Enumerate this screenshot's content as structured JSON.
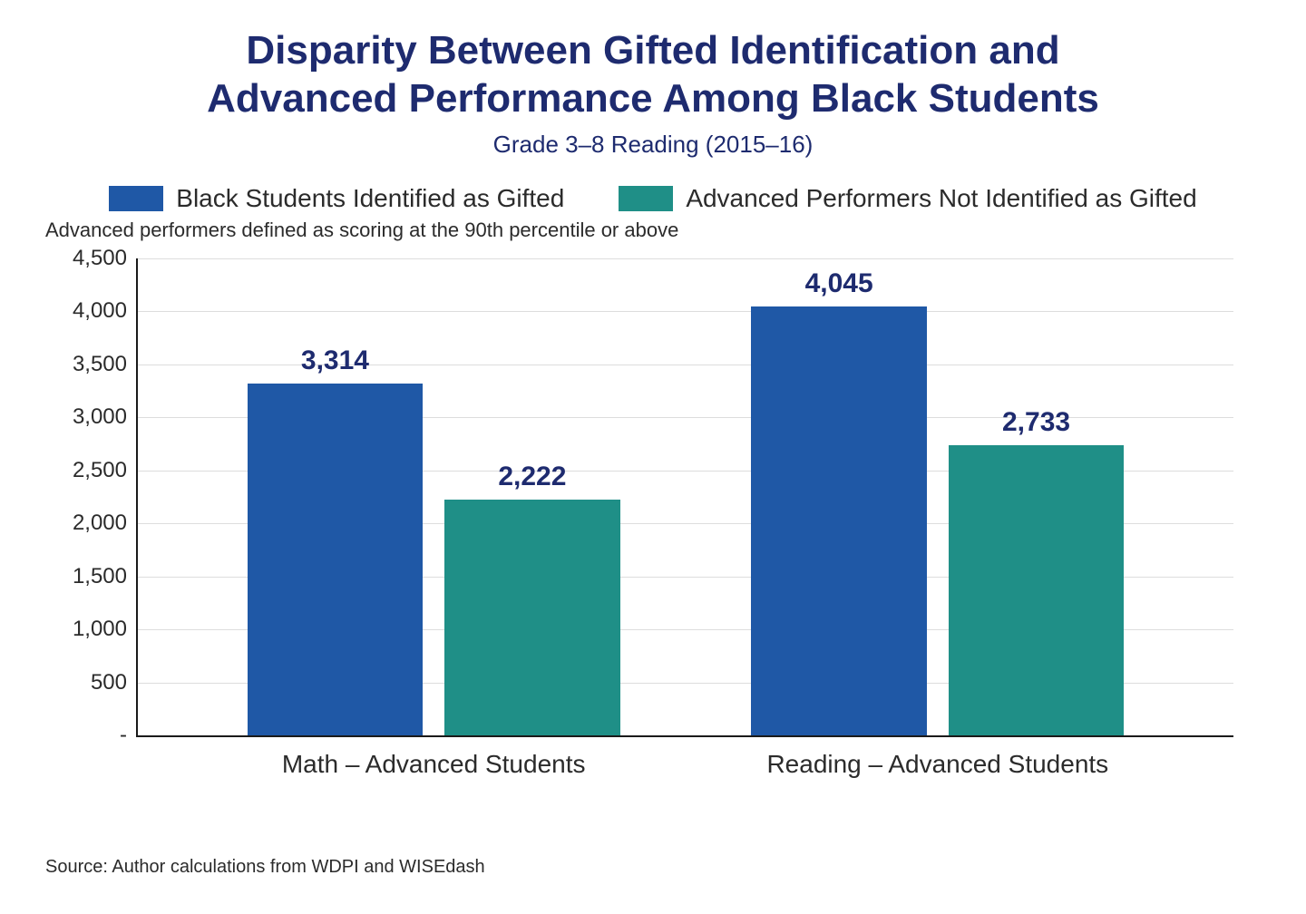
{
  "title_line1": "Disparity Between Gifted Identification and",
  "title_line2": "Advanced Performance Among Black Students",
  "subtitle": "Grade 3–8 Reading (2015–16)",
  "legend": [
    {
      "label": "Black Students Identified as Gifted",
      "color": "#1f58a6"
    },
    {
      "label": "Advanced Performers Not Identified as Gifted",
      "color": "#1f8f87"
    }
  ],
  "note": "Advanced performers defined as scoring at the 90th percentile or above",
  "chart": {
    "type": "grouped-bar",
    "ylim": [
      0,
      4500
    ],
    "ytick_step": 500,
    "ytick_format": "comma",
    "bar_width_pct": 16,
    "bar_gap_pct": 2,
    "group_gap_pct": 12,
    "grid_color": "#dddddd",
    "axis_color": "#1a1a1a",
    "label_color": "#1e2b6f",
    "tick_color": "#2b2b2b",
    "groups": [
      {
        "x_label": "Math – Advanced Students",
        "bars": [
          {
            "value": 3314,
            "label": "3,314",
            "color_ref": 0
          },
          {
            "value": 2222,
            "label": "2,222",
            "color_ref": 1
          }
        ]
      },
      {
        "x_label": "Reading – Advanced Students",
        "bars": [
          {
            "value": 4045,
            "label": "4,045",
            "color_ref": 0
          },
          {
            "value": 2733,
            "label": "2,733",
            "color_ref": 1
          }
        ]
      }
    ]
  },
  "footnote": "Source: Author calculations from WDPI and WISEdash"
}
